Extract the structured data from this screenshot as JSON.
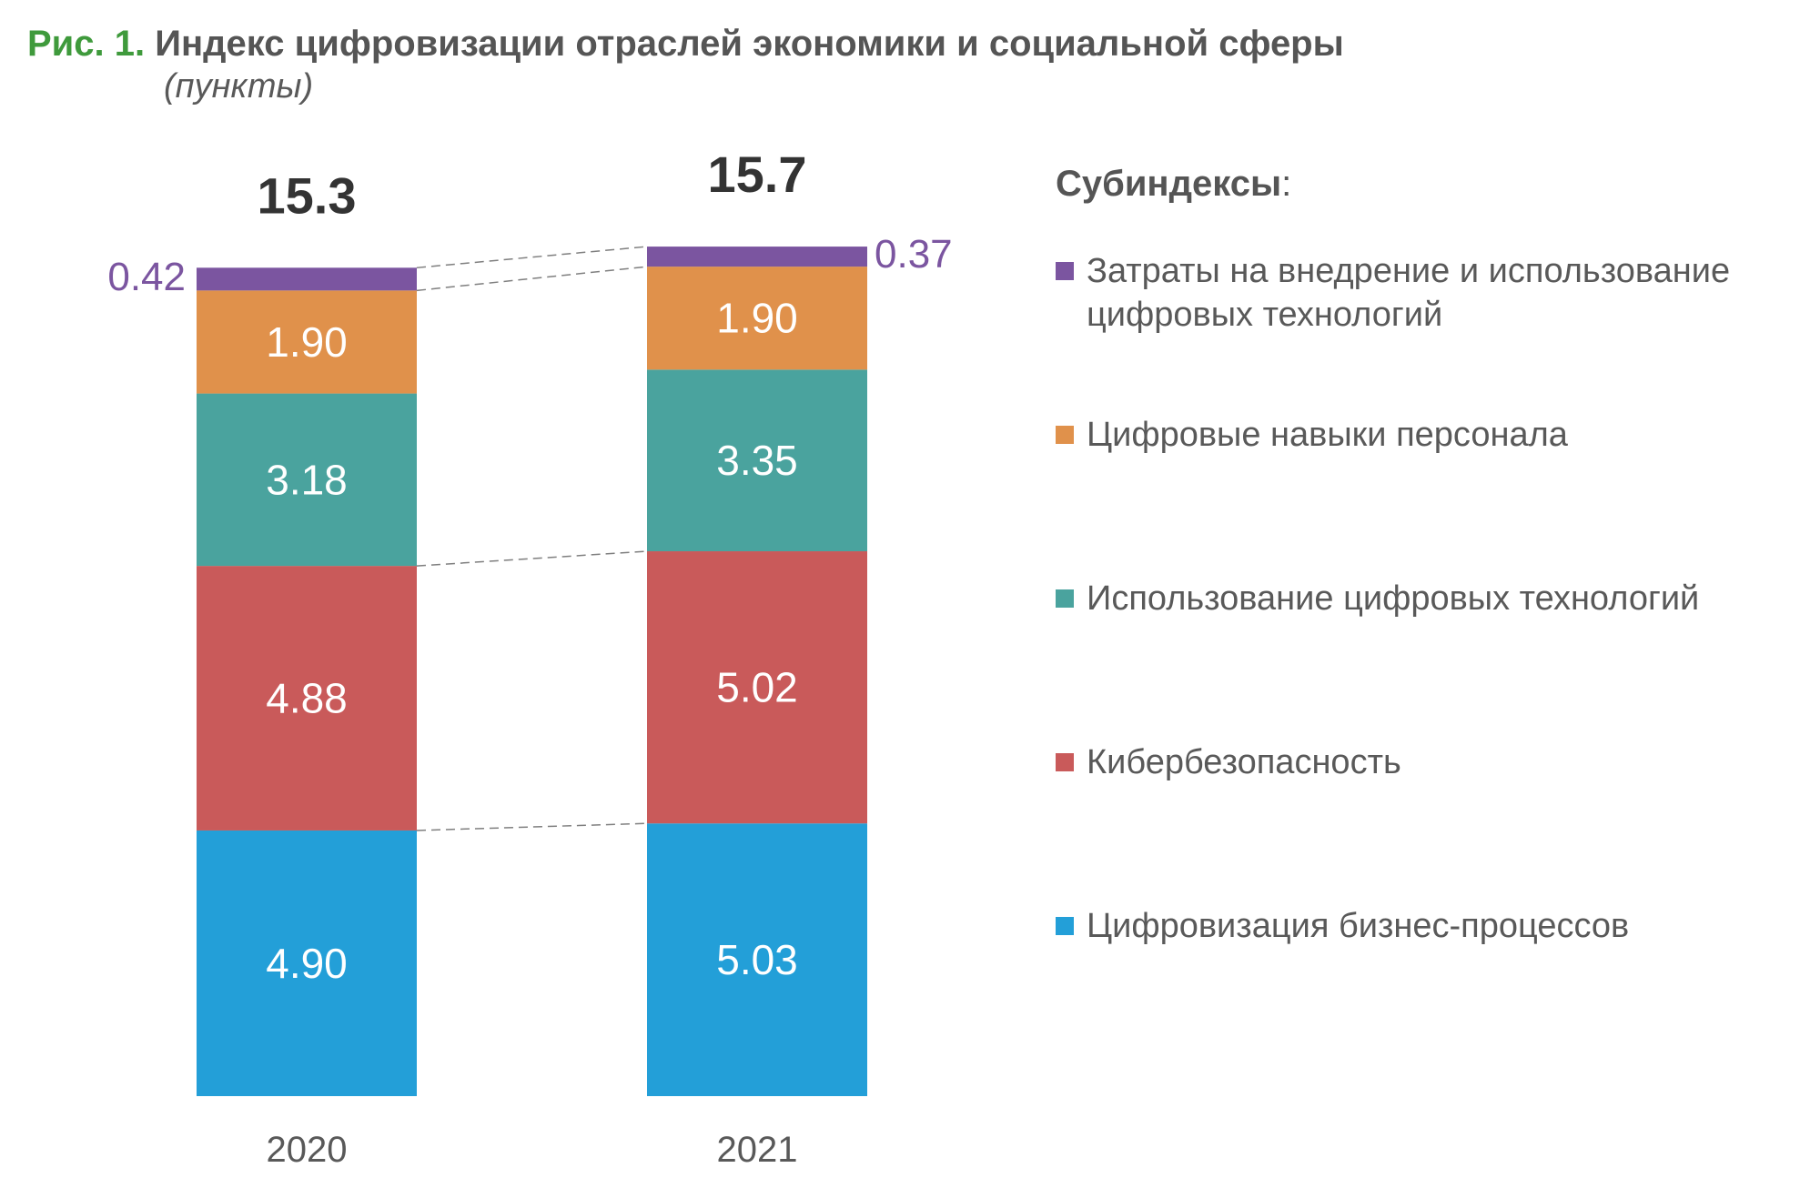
{
  "title": {
    "figure_label": "Рис. 1.",
    "text": "Индекс цифровизации отраслей экономики и социальной сферы",
    "subtitle": "(пункты)"
  },
  "legend": {
    "heading": "Субиндексы",
    "heading_suffix": ":"
  },
  "chart_data": {
    "type": "bar",
    "stacked": true,
    "categories": [
      "2020",
      "2021"
    ],
    "totals": [
      "15.3",
      "15.7"
    ],
    "series": [
      {
        "name": "Цифровизация бизнес-процессов",
        "color": "#239fd8",
        "values": [
          4.9,
          5.03
        ],
        "labels": [
          "4.90",
          "5.03"
        ]
      },
      {
        "name": "Кибербезопасность",
        "color": "#c95a5a",
        "values": [
          4.88,
          5.02
        ],
        "labels": [
          "4.88",
          "5.02"
        ]
      },
      {
        "name": "Использование цифровых технологий",
        "color": "#4aa39e",
        "values": [
          3.18,
          3.35
        ],
        "labels": [
          "3.18",
          "3.35"
        ]
      },
      {
        "name": "Цифровые навыки персонала",
        "color": "#e0914b",
        "values": [
          1.9,
          1.9
        ],
        "labels": [
          "1.90",
          "1.90"
        ]
      },
      {
        "name": "Затраты на внедрение и использование цифровых технологий",
        "color": "#7b55a0",
        "values": [
          0.42,
          0.37
        ],
        "labels": [
          "0.42",
          "0.37"
        ]
      }
    ],
    "legend_position": "right",
    "connector_lines": "dashed",
    "grid": false
  }
}
